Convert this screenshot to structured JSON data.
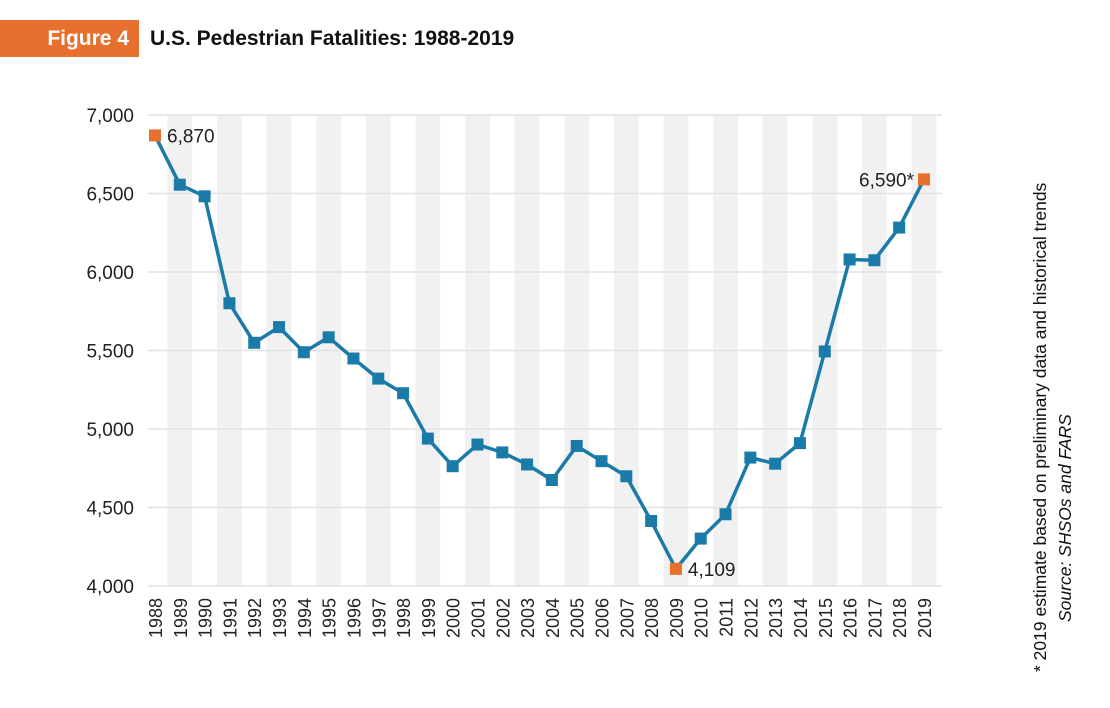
{
  "header": {
    "figure_label": "Figure 4",
    "title": "U.S. Pedestrian Fatalities: 1988-2019"
  },
  "notes": {
    "estimate_note": "* 2019 estimate based on preliminary data and historical trends",
    "source": "Source: SHSOs and FARS"
  },
  "colors": {
    "line": "#1a7aa8",
    "marker": "#1a7aa8",
    "highlight_marker": "#e8702f",
    "band": "#f1f1f1",
    "grid": "#e2e2e2"
  },
  "chart_data": {
    "type": "line",
    "title": "U.S. Pedestrian Fatalities: 1988-2019",
    "xlabel": "",
    "ylabel": "",
    "ylim": [
      4000,
      7000
    ],
    "yticks": [
      4000,
      4500,
      5000,
      5500,
      6000,
      6500,
      7000
    ],
    "ytick_labels": [
      "4,000",
      "4,500",
      "5,000",
      "5,500",
      "6,000",
      "6,500",
      "7,000"
    ],
    "grid": true,
    "categories": [
      "1988",
      "1989",
      "1990",
      "1991",
      "1992",
      "1993",
      "1994",
      "1995",
      "1996",
      "1997",
      "1998",
      "1999",
      "2000",
      "2001",
      "2002",
      "2003",
      "2004",
      "2005",
      "2006",
      "2007",
      "2008",
      "2009",
      "2010",
      "2011",
      "2012",
      "2013",
      "2014",
      "2015",
      "2016",
      "2017",
      "2018",
      "2019"
    ],
    "series": [
      {
        "name": "Pedestrian fatalities",
        "values": [
          6870,
          6556,
          6482,
          5801,
          5549,
          5649,
          5489,
          5584,
          5449,
          5321,
          5228,
          4939,
          4763,
          4901,
          4851,
          4774,
          4675,
          4892,
          4795,
          4699,
          4414,
          4109,
          4302,
          4457,
          4818,
          4779,
          4910,
          5494,
          6080,
          6075,
          6283,
          6590
        ]
      }
    ],
    "annotations": [
      {
        "category": "1988",
        "label": "6,870",
        "side": "right"
      },
      {
        "category": "2009",
        "label": "4,109",
        "side": "right"
      },
      {
        "category": "2019",
        "label": "6,590*",
        "side": "left"
      }
    ]
  }
}
